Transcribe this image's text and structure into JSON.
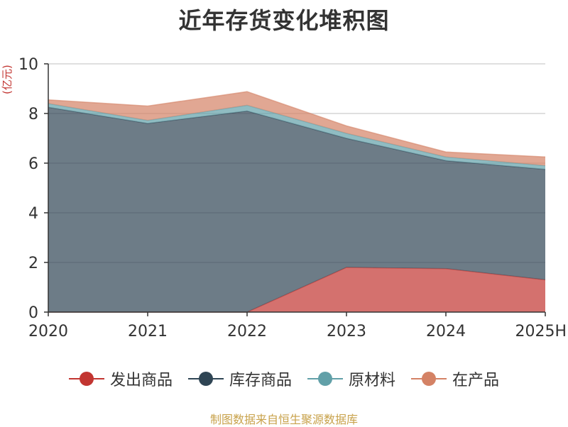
{
  "title": "近年存货变化堆积图",
  "unit": "亿元",
  "source": "制图数据来自恒生聚源数据库",
  "chart_data": {
    "type": "area",
    "stacked": true,
    "categories": [
      "2020",
      "2021",
      "2022",
      "2023",
      "2024",
      "2025H"
    ],
    "ylim": [
      0,
      10
    ],
    "yticks": [
      0,
      2,
      4,
      6,
      8,
      10
    ],
    "grid": true,
    "legend_position": "bottom",
    "series": [
      {
        "name": "发出商品",
        "color": "#c23531",
        "values": [
          0,
          0,
          0,
          1.8,
          1.75,
          1.3
        ]
      },
      {
        "name": "库存商品",
        "color": "#2f4554",
        "values": [
          8.25,
          7.6,
          8.1,
          5.2,
          4.35,
          4.45
        ]
      },
      {
        "name": "原材料",
        "color": "#61a0a8",
        "values": [
          0.15,
          0.12,
          0.23,
          0.2,
          0.15,
          0.15
        ]
      },
      {
        "name": "在产品",
        "color": "#d48265",
        "values": [
          0.15,
          0.58,
          0.55,
          0.3,
          0.2,
          0.35
        ]
      }
    ]
  }
}
